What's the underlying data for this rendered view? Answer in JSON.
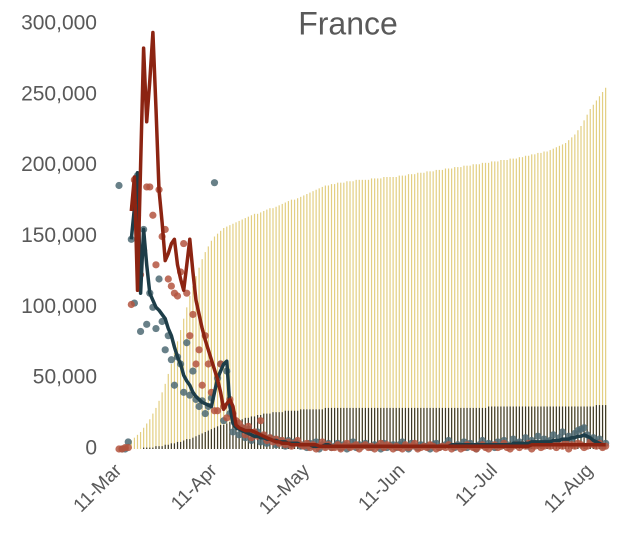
{
  "chart_data": {
    "type": "combo",
    "title": "France",
    "categories": [
      "11-Mar",
      null,
      null,
      null,
      null,
      null,
      null,
      null,
      null,
      null,
      null,
      null,
      null,
      null,
      null,
      null,
      null,
      null,
      null,
      null,
      null,
      null,
      null,
      null,
      null,
      null,
      null,
      null,
      null,
      null,
      null,
      "11-Apr",
      null,
      null,
      null,
      null,
      null,
      null,
      null,
      null,
      null,
      null,
      null,
      null,
      null,
      null,
      null,
      null,
      null,
      null,
      null,
      null,
      null,
      null,
      null,
      null,
      null,
      null,
      null,
      null,
      null,
      "11-May",
      null,
      null,
      null,
      null,
      null,
      null,
      null,
      null,
      null,
      null,
      null,
      null,
      null,
      null,
      null,
      null,
      null,
      null,
      null,
      null,
      null,
      null,
      null,
      null,
      null,
      null,
      null,
      null,
      null,
      null,
      "11-Jun",
      null,
      null,
      null,
      null,
      null,
      null,
      null,
      null,
      null,
      null,
      null,
      null,
      null,
      null,
      null,
      null,
      null,
      null,
      null,
      null,
      null,
      null,
      null,
      null,
      null,
      null,
      null,
      null,
      null,
      "11-Jul",
      null,
      null,
      null,
      null,
      null,
      null,
      null,
      null,
      null,
      null,
      null,
      null,
      null,
      null,
      null,
      null,
      null,
      null,
      null,
      null,
      null,
      null,
      null,
      null,
      null,
      null,
      null,
      null,
      null,
      null,
      "11-Aug",
      null,
      null,
      null,
      null,
      null
    ],
    "ylim": [
      0,
      300000
    ],
    "yticks": [
      0,
      {
        "value": 50000,
        "label": "50,000"
      },
      {
        "value": 100000,
        "label": "100,000"
      },
      {
        "value": 150000,
        "label": "150,000"
      },
      {
        "value": 200000,
        "label": "200,000"
      },
      {
        "value": 250000,
        "label": "250,000"
      },
      {
        "value": 300000,
        "label": "300,000"
      }
    ],
    "grid": false,
    "series": [
      {
        "type": "bar",
        "color": "#e3cf82",
        "values": [
          1000,
          2000,
          3000,
          4000,
          6000,
          8000,
          10000,
          12000,
          15000,
          18000,
          21000,
          25000,
          29000,
          34000,
          40000,
          46000,
          53000,
          60000,
          68000,
          76000,
          84000,
          92000,
          100000,
          108000,
          115000,
          122000,
          128000,
          134000,
          139000,
          143000,
          147000,
          150000,
          152000,
          154000,
          156000,
          157000,
          158000,
          159000,
          160000,
          161000,
          162000,
          163000,
          164000,
          165000,
          166000,
          166000,
          167000,
          168000,
          169000,
          170000,
          170000,
          171000,
          172000,
          173000,
          174000,
          175000,
          176000,
          176000,
          177000,
          178000,
          179000,
          180000,
          181000,
          182000,
          183000,
          184000,
          185000,
          186000,
          186000,
          187000,
          187000,
          188000,
          188000,
          188000,
          189000,
          189000,
          189000,
          190000,
          190000,
          190000,
          190000,
          190000,
          191000,
          191000,
          191000,
          191000,
          192000,
          192000,
          192000,
          192000,
          192000,
          193000,
          193000,
          193000,
          194000,
          194000,
          194000,
          195000,
          195000,
          195000,
          196000,
          196000,
          196000,
          197000,
          197000,
          197000,
          198000,
          198000,
          198000,
          199000,
          199000,
          199000,
          200000,
          200000,
          200000,
          201000,
          201000,
          201000,
          202000,
          202000,
          202000,
          203000,
          203000,
          203000,
          204000,
          204000,
          204000,
          205000,
          205000,
          205000,
          206000,
          206000,
          207000,
          207000,
          208000,
          208000,
          209000,
          209000,
          210000,
          210000,
          211000,
          212000,
          213000,
          214000,
          215000,
          216000,
          218000,
          220000,
          222000,
          225000,
          228000,
          232000,
          236000,
          240000,
          243000,
          246000,
          249000,
          252000,
          255000
        ]
      },
      {
        "type": "bar",
        "color": "#3d3826",
        "values": [
          0,
          0,
          0,
          0,
          0,
          0,
          0,
          0,
          1000,
          1000,
          1000,
          1000,
          2000,
          2000,
          2000,
          3000,
          3000,
          4000,
          4000,
          5000,
          5000,
          6000,
          7000,
          7000,
          8000,
          9000,
          10000,
          11000,
          12000,
          13000,
          14000,
          15000,
          16000,
          17000,
          17000,
          18000,
          19000,
          19000,
          20000,
          21000,
          21000,
          22000,
          22000,
          23000,
          23000,
          24000,
          24000,
          25000,
          25000,
          25000,
          26000,
          26000,
          26000,
          26000,
          27000,
          27000,
          27000,
          27000,
          27000,
          28000,
          28000,
          28000,
          28000,
          28000,
          28000,
          28000,
          28000,
          29000,
          29000,
          29000,
          29000,
          29000,
          29000,
          29000,
          29000,
          29000,
          29000,
          29000,
          29000,
          29000,
          29000,
          29000,
          29000,
          29000,
          29000,
          29000,
          29000,
          29000,
          29000,
          29000,
          29000,
          29000,
          29000,
          29000,
          29000,
          29000,
          29000,
          29000,
          29000,
          29000,
          29000,
          29000,
          29000,
          29000,
          29000,
          29000,
          29000,
          29000,
          29000,
          29000,
          29000,
          29000,
          29000,
          29000,
          29000,
          29000,
          29000,
          29000,
          29000,
          29000,
          30000,
          30000,
          30000,
          30000,
          30000,
          30000,
          30000,
          30000,
          30000,
          30000,
          30000,
          30000,
          30000,
          30000,
          30000,
          30000,
          30000,
          30000,
          30000,
          30000,
          30000,
          30000,
          30000,
          30000,
          30000,
          30000,
          30000,
          30000,
          30000,
          30000,
          30000,
          30000,
          30000,
          30000,
          30000,
          31000,
          31000,
          31000,
          31000
        ]
      },
      {
        "type": "scatter",
        "color": "#4d6a73",
        "values": [
          186000,
          0,
          0,
          5000,
          148000,
          103000,
          193000,
          83000,
          155000,
          88000,
          110000,
          100000,
          85000,
          120000,
          90000,
          70000,
          80000,
          63000,
          45000,
          65000,
          60000,
          40000,
          75000,
          38000,
          55000,
          35000,
          30000,
          34000,
          25000,
          30000,
          36000,
          188000,
          50000,
          60000,
          20000,
          55000,
          25000,
          12000,
          18000,
          10000,
          15000,
          8000,
          14000,
          6000,
          10000,
          12000,
          5000,
          9000,
          4000,
          8000,
          7000,
          3000,
          6000,
          5000,
          2000,
          6000,
          3000,
          5000,
          4000,
          2000,
          3000,
          1000,
          4000,
          2000,
          5000,
          0,
          3000,
          2000,
          4000,
          1000,
          2000,
          4000,
          1000,
          3000,
          0,
          2000,
          5000,
          1000,
          3000,
          2000,
          4000,
          2000,
          1000,
          3000,
          2000,
          0,
          4000,
          1000,
          2000,
          3000,
          1000,
          3000,
          5000,
          2000,
          0,
          4000,
          2000,
          1000,
          3000,
          2000,
          2000,
          0,
          3000,
          4000,
          1000,
          2000,
          3000,
          6000,
          2000,
          1000,
          3000,
          2000,
          5000,
          1000,
          4000,
          2000,
          0,
          3000,
          6000,
          2000,
          4000,
          3000,
          1000,
          5000,
          2000,
          6000,
          3000,
          2000,
          7000,
          4000,
          5000,
          3000,
          8000,
          2000,
          6000,
          4000,
          9000,
          3000,
          7000,
          5000,
          6000,
          10000,
          4000,
          8000,
          12000,
          5000,
          9000,
          7000,
          11000,
          13000,
          14000,
          15000,
          10000,
          6000,
          8000,
          5000,
          7000,
          2000,
          4000
        ]
      },
      {
        "type": "scatter",
        "color": "#b4553f",
        "values": [
          0,
          0,
          1000,
          1000,
          102000,
          190000,
          165000,
          123000,
          140000,
          185000,
          185000,
          165000,
          130000,
          183000,
          150000,
          155000,
          120000,
          115000,
          110000,
          108000,
          125000,
          145000,
          110000,
          80000,
          95000,
          60000,
          70000,
          45000,
          80000,
          60000,
          40000,
          27000,
          27000,
          60000,
          30000,
          22000,
          35000,
          25000,
          20000,
          18000,
          15000,
          10000,
          16000,
          8000,
          12000,
          9000,
          20000,
          10000,
          6000,
          8000,
          5000,
          7000,
          4000,
          6000,
          3000,
          5000,
          2000,
          4000,
          6000,
          3000,
          2000,
          4000,
          1000,
          3000,
          0,
          2000,
          5000,
          1000,
          3000,
          1000,
          1000,
          3000,
          0,
          2000,
          4000,
          1000,
          2000,
          3000,
          0,
          2000,
          3000,
          1000,
          2000,
          0,
          2000,
          4000,
          1000,
          3000,
          2000,
          0,
          2000,
          1000,
          0,
          3000,
          1000,
          2000,
          4000,
          0,
          1000,
          2000,
          1000,
          3000,
          2000,
          0,
          1000,
          2000,
          1000,
          3000,
          0,
          2000,
          2000,
          0,
          1000,
          3000,
          2000,
          1000,
          0,
          2000,
          3000,
          1000,
          0,
          2000,
          3000,
          1000,
          2000,
          4000,
          1000,
          0,
          2000,
          3000,
          1000,
          3000,
          2000,
          4000,
          0,
          2000,
          3000,
          1000,
          2000,
          3000,
          2000,
          4000,
          1000,
          3000,
          2000,
          5000,
          0,
          3000,
          2000,
          4000,
          3000,
          1000,
          2000,
          5000,
          3000,
          2000,
          4000,
          1000,
          2000
        ]
      },
      {
        "type": "line",
        "color": "#1d3d48",
        "values": [
          null,
          null,
          null,
          null,
          148000,
          170000,
          195000,
          110000,
          155000,
          130000,
          110000,
          105000,
          100000,
          98000,
          95000,
          92000,
          85000,
          80000,
          72000,
          65000,
          60000,
          52000,
          48000,
          45000,
          40000,
          37000,
          35000,
          33000,
          32000,
          31000,
          30000,
          40000,
          50000,
          55000,
          60000,
          62000,
          30000,
          18000,
          15000,
          14000,
          13000,
          12000,
          11000,
          10000,
          9000,
          9000,
          8000,
          8000,
          7000,
          7000,
          6000,
          6000,
          5000,
          5000,
          5000,
          4000,
          4000,
          4000,
          4000,
          3000,
          3000,
          3000,
          3000,
          2000,
          2000,
          2000,
          2000,
          3000,
          3000,
          2000,
          2000,
          2000,
          2000,
          2000,
          2000,
          2000,
          2000,
          2000,
          2000,
          2000,
          2000,
          2000,
          2000,
          2000,
          2000,
          2000,
          2000,
          2000,
          2000,
          2000,
          2000,
          2000,
          2000,
          2000,
          2000,
          2000,
          2000,
          2000,
          2000,
          2000,
          2000,
          2000,
          2000,
          2000,
          2000,
          2000,
          2000,
          2000,
          3000,
          3000,
          3000,
          3000,
          3000,
          3000,
          3000,
          3000,
          3000,
          3000,
          3000,
          3000,
          3000,
          3000,
          3000,
          3000,
          3000,
          3000,
          3000,
          3000,
          4000,
          4000,
          4000,
          4000,
          4000,
          4000,
          5000,
          5000,
          5000,
          5000,
          5000,
          5000,
          5000,
          6000,
          6000,
          6000,
          7000,
          7000,
          7000,
          8000,
          8000,
          9000,
          9000,
          10000,
          9000,
          8000,
          6000,
          5000,
          4000,
          3000,
          3000
        ]
      },
      {
        "type": "line",
        "color": "#8c2412",
        "values": [
          null,
          null,
          null,
          null,
          168000,
          192000,
          112000,
          200000,
          283000,
          231000,
          260000,
          294000,
          240000,
          183000,
          160000,
          133000,
          138000,
          145000,
          148000,
          130000,
          120000,
          112000,
          130000,
          148000,
          125000,
          105000,
          95000,
          85000,
          77000,
          70000,
          63000,
          56000,
          49000,
          40000,
          28000,
          32000,
          35000,
          30000,
          17000,
          15000,
          14000,
          13000,
          13000,
          13000,
          12000,
          11000,
          10000,
          9000,
          8000,
          7000,
          6000,
          5000,
          5000,
          4000,
          4000,
          4000,
          3000,
          3000,
          3000,
          3000,
          3000,
          3000,
          3000,
          3000,
          3000,
          2000,
          2000,
          2000,
          2000,
          2000,
          2000,
          2000,
          2000,
          2000,
          2000,
          2000,
          2000,
          2000,
          2000,
          2000,
          2000,
          2000,
          2000,
          2000,
          2000,
          2000,
          2000,
          2000,
          2000,
          2000,
          2000,
          2000,
          2000,
          2000,
          2000,
          2000,
          2000,
          2000,
          2000,
          2000,
          2000,
          2000,
          2000,
          2000,
          2000,
          2000,
          2000,
          2000,
          2000,
          2000,
          2000,
          2000,
          2000,
          2000,
          2000,
          2000,
          2000,
          2000,
          2000,
          2000,
          2000,
          2000,
          2000,
          2000,
          2000,
          2000,
          2000,
          2000,
          2000,
          2000,
          2000,
          2000,
          2000,
          2000,
          3000,
          3000,
          3000,
          3000,
          3000,
          3000,
          3000,
          3000,
          3000,
          3000,
          3000,
          3000,
          3000,
          3000,
          3000,
          3000,
          3000,
          3000,
          3000,
          3000,
          3000,
          3000,
          3000,
          3000,
          3000
        ]
      }
    ]
  }
}
